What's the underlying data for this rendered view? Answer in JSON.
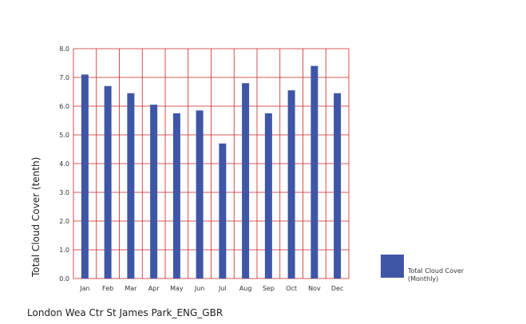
{
  "chart_data": {
    "type": "bar",
    "categories": [
      "Jan",
      "Feb",
      "Mar",
      "Apr",
      "May",
      "Jun",
      "Jul",
      "Aug",
      "Sep",
      "Oct",
      "Nov",
      "Dec"
    ],
    "series": [
      {
        "name": "Total Cloud Cover (Monthly)",
        "values": [
          7.1,
          6.7,
          6.45,
          6.05,
          5.75,
          5.85,
          4.7,
          6.8,
          5.75,
          6.55,
          7.4,
          6.45
        ]
      }
    ],
    "ylabel": "Total Cloud Cover (tenth)",
    "xlabel": "",
    "ylim": [
      0,
      8
    ],
    "yticks": [
      "0.0",
      "1.0",
      "2.0",
      "3.0",
      "4.0",
      "5.0",
      "6.0",
      "7.0",
      "8.0"
    ],
    "grid": true,
    "legend_position": "bottom-right",
    "bar_color": "#3f56a7",
    "grid_color": "#cc2222"
  },
  "legend": {
    "line1": "Total Cloud Cover",
    "line2": "(Monthly)"
  },
  "caption": "London Wea Ctr St James Park_ENG_GBR"
}
